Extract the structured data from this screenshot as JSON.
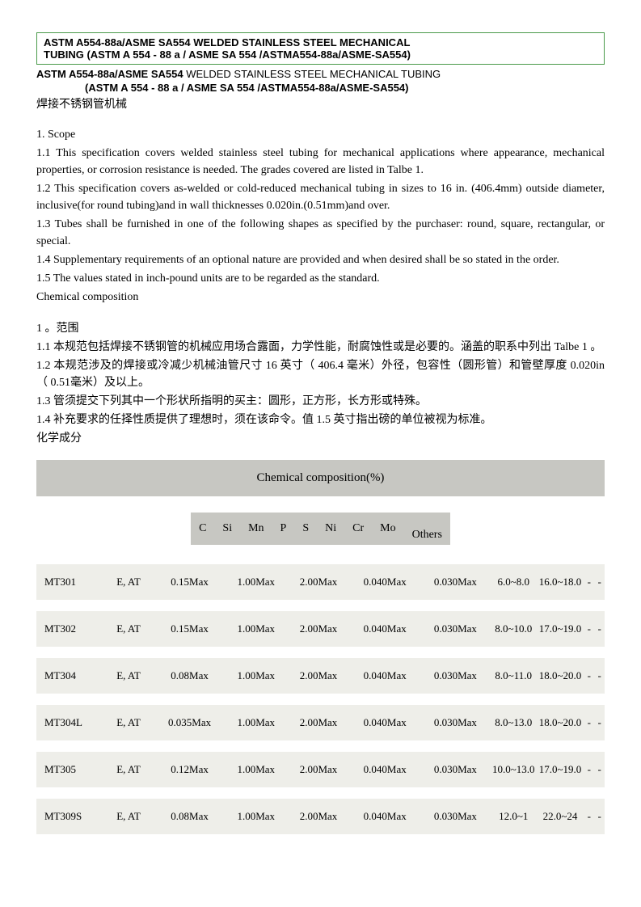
{
  "titleBox": {
    "line1": "ASTM A554-88a/ASME SA554 WELDED STAINLESS STEEL MECHANICAL",
    "line2": "TUBING (ASTM A 554 - 88 a / ASME SA 554 /ASTMA554-88a/ASME-SA554)"
  },
  "subtitle": {
    "boldPart": "ASTM A554-88a/ASME SA554",
    "rest": " WELDED STAINLESS STEEL MECHANICAL TUBING",
    "line2": "(ASTM A 554 - 88 a / ASME SA 554 /ASTMA554-88a/ASME-SA554)"
  },
  "cnTitle": "焊接不锈钢管机械",
  "scope": {
    "heading": "1. Scope",
    "p11": "1.1 This specification covers welded stainless steel tubing for mechanical applications where appearance, mechanical properties, or corrosion resistance is needed. The grades covered are listed in Talbe 1.",
    "p12": "1.2 This specification covers as-welded or cold-reduced mechanical tubing in sizes to 16 in. (406.4mm) outside diameter, inclusive(for round tubing)and in wall thicknesses 0.020in.(0.51mm)and over.",
    "p13": "1.3 Tubes shall be furnished in one of the following shapes as specified by the purchaser: round, square, rectangular, or special.",
    "p14": "1.4 Supplementary requirements of an optional nature are provided and when desired shall be so stated in the order.",
    "p15": "1.5 The values stated in inch-pound units are to be regarded as the standard.",
    "chemLabel": "Chemical composition"
  },
  "cnScope": {
    "heading": "1 。范围",
    "p11": "  1.1 本规范包括焊接不锈钢管的机械应用场合露面，力学性能，耐腐蚀性或是必要的。涵盖的职系中列出 Talbe 1 。",
    "p12": "  1.2 本规范涉及的焊接或冷减少机械油管尺寸 16 英寸（ 406.4 毫米）外径，包容性（圆形管）和管壁厚度 0.020in （ 0.51毫米）及以上。",
    "p13": "  1.3 管须提交下列其中一个形状所指明的买主：圆形，正方形，长方形或特殊。",
    "p14": "  1.4 补充要求的任择性质提供了理想时，须在该命令。值 1.5 英寸指出磅的单位被视为标准。",
    "chemLabel": "化学成分"
  },
  "tableTitle": "Chemical composition(%)",
  "columns": [
    "C",
    "Si",
    "Mn",
    "P",
    "S",
    "Ni",
    "Cr",
    "Mo",
    "Others"
  ],
  "rows": [
    {
      "grade": "MT301",
      "cond": "E, AT",
      "c": "0.15Max",
      "si": "1.00Max",
      "mn": "2.00Max",
      "p": "0.040Max",
      "s": "0.030Max",
      "ni": "6.0~8.0",
      "cr": "16.0~18.0",
      "mo": "-",
      "others": "-"
    },
    {
      "grade": "MT302",
      "cond": "E, AT",
      "c": "0.15Max",
      "si": "1.00Max",
      "mn": "2.00Max",
      "p": "0.040Max",
      "s": "0.030Max",
      "ni": "8.0~10.0",
      "cr": "17.0~19.0",
      "mo": "-",
      "others": "-"
    },
    {
      "grade": "MT304",
      "cond": "E, AT",
      "c": "0.08Max",
      "si": "1.00Max",
      "mn": "2.00Max",
      "p": "0.040Max",
      "s": "0.030Max",
      "ni": "8.0~11.0",
      "cr": "18.0~20.0",
      "mo": "-",
      "others": "-"
    },
    {
      "grade": "MT304L",
      "cond": "E, AT",
      "c": "0.035Max",
      "si": "1.00Max",
      "mn": "2.00Max",
      "p": "0.040Max",
      "s": "0.030Max",
      "ni": "8.0~13.0",
      "cr": "18.0~20.0",
      "mo": "-",
      "others": "-"
    },
    {
      "grade": "MT305",
      "cond": "E, AT",
      "c": "0.12Max",
      "si": "1.00Max",
      "mn": "2.00Max",
      "p": "0.040Max",
      "s": "0.030Max",
      "ni": "10.0~13.0",
      "cr": "17.0~19.0",
      "mo": "-",
      "others": "-"
    },
    {
      "grade": "MT309S",
      "cond": "E, AT",
      "c": "0.08Max",
      "si": "1.00Max",
      "mn": "2.00Max",
      "p": "0.040Max",
      "s": "0.030Max",
      "ni": "12.0~1",
      "cr": "22.0~24",
      "mo": "-",
      "others": "-"
    }
  ]
}
